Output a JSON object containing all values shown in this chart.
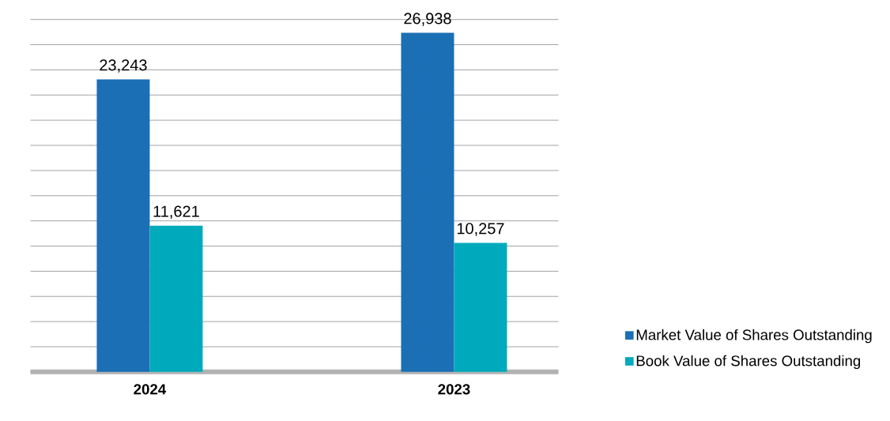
{
  "chart_data": {
    "type": "bar",
    "categories": [
      "2024",
      "2023"
    ],
    "series": [
      {
        "name": "Market Value of Shares Outstanding",
        "color": "#1a6fb5",
        "values": [
          23243,
          26938
        ],
        "value_labels": [
          "23,243",
          "26,938"
        ]
      },
      {
        "name": "Book Value of Shares Outstanding",
        "color": "#00aabd",
        "values": [
          11621,
          10257
        ],
        "value_labels": [
          "11,621",
          "10,257"
        ]
      }
    ],
    "grid": "y",
    "legend": "bottom right",
    "tick_labels": "x"
  }
}
